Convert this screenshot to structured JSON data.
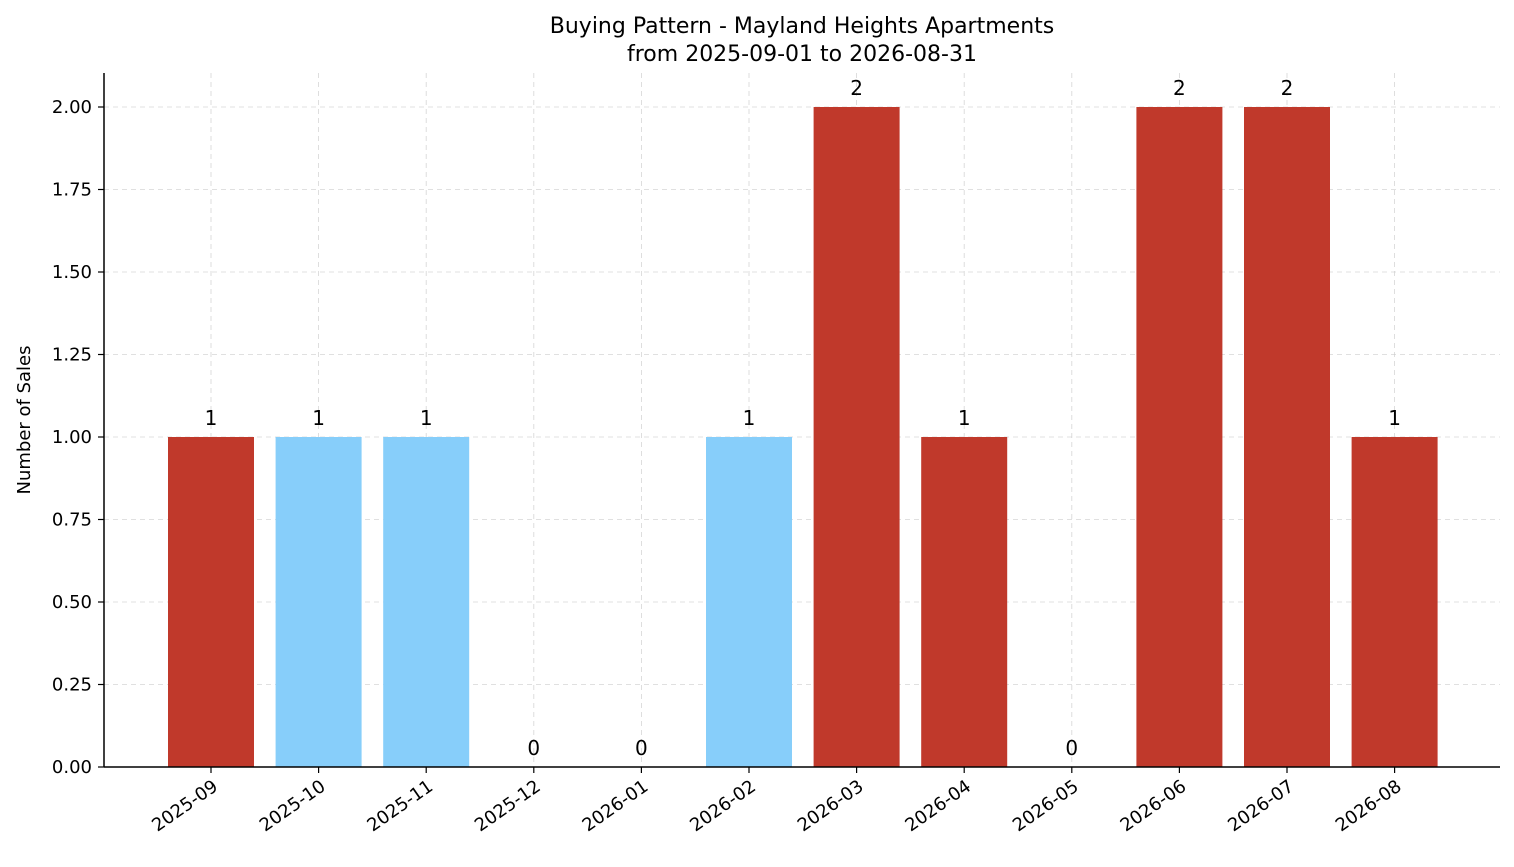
{
  "chart_data": {
    "type": "bar",
    "title": "Buying Pattern - Mayland Heights Apartments",
    "subtitle": "from 2025-09-01 to 2026-08-31",
    "xlabel": "",
    "ylabel": "Number of Sales",
    "categories": [
      "2025-09",
      "2025-10",
      "2025-11",
      "2025-12",
      "2026-01",
      "2026-02",
      "2026-03",
      "2026-04",
      "2026-05",
      "2026-06",
      "2026-07",
      "2026-08"
    ],
    "values": [
      1,
      1,
      1,
      0,
      0,
      1,
      2,
      1,
      0,
      2,
      2,
      1
    ],
    "data_labels": [
      "1",
      "1",
      "1",
      "0",
      "0",
      "1",
      "2",
      "1",
      "0",
      "2",
      "2",
      "1"
    ],
    "bar_colors": [
      "#c0392b",
      "#87cefa",
      "#87cefa",
      "#87cefa",
      "#87cefa",
      "#87cefa",
      "#c0392b",
      "#c0392b",
      "#87cefa",
      "#c0392b",
      "#c0392b",
      "#c0392b"
    ],
    "ylim": [
      0,
      2.1
    ],
    "yticks": [
      0,
      0.25,
      0.5,
      0.75,
      1,
      1.25,
      1.5,
      1.75,
      2
    ],
    "ytick_labels": [
      "0.00",
      "0.25",
      "0.50",
      "0.75",
      "1.00",
      "1.25",
      "1.50",
      "1.75",
      "2.00"
    ],
    "grid": true,
    "xtick_rotation_deg": 35
  }
}
